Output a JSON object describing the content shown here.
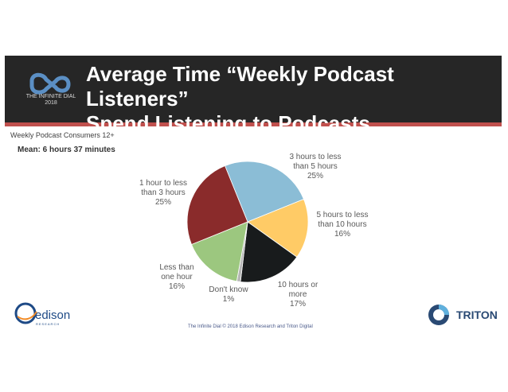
{
  "header": {
    "title_line1": "Average Time “Weekly Podcast Listeners”",
    "title_line2": "Spend Listening to Podcasts",
    "logo_text": "THE INFINITE DIAL\n2018"
  },
  "subtitle": "Weekly Podcast Consumers 12+",
  "mean": "Mean: 6 hours  37 minutes",
  "footer": "The Infinite Dial  © 2018 Edison Research and Triton Digital",
  "logos": {
    "edison": "edison",
    "edison_sub": "RESEARCH",
    "triton": "TRITON"
  },
  "chart_data": {
    "type": "pie",
    "title": "",
    "slices": [
      {
        "label": "3 hours to less\nthan 5 hours\n25%",
        "value": 25,
        "color": "#8bbdd6"
      },
      {
        "label": "5 hours to less\nthan 10 hours\n16%",
        "value": 16,
        "color": "#ffcb66"
      },
      {
        "label": "10 hours or\nmore\n17%",
        "value": 17,
        "color": "#181b1c"
      },
      {
        "label": "Don't know\n1%",
        "value": 1,
        "color": "#b6b6b6"
      },
      {
        "label": "Less than\none hour\n16%",
        "value": 16,
        "color": "#9cc77f"
      },
      {
        "label": "1 hour to less\nthan 3 hours\n25%",
        "value": 25,
        "color": "#8a2b2b"
      }
    ]
  }
}
